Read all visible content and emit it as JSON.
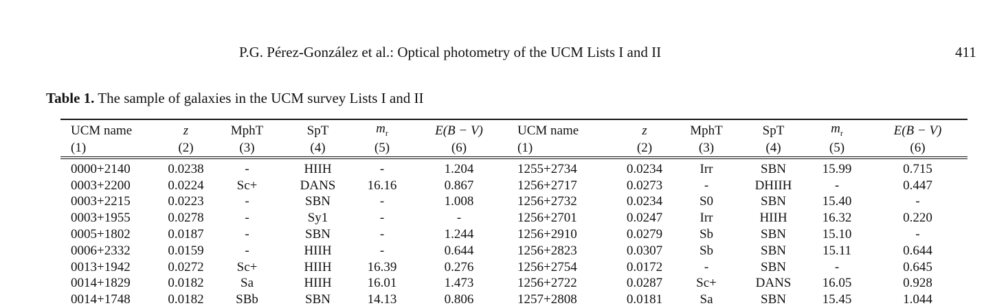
{
  "header": {
    "running_title": "P.G. Pérez-González et al.: Optical photometry of the UCM Lists I and II",
    "page_number": "411"
  },
  "caption": {
    "label": "Table 1.",
    "text": "The sample of galaxies in the UCM survey Lists I and II"
  },
  "table": {
    "columns": [
      "UCM name",
      "z",
      "MphT",
      "SpT",
      "mr",
      "E(B − V)",
      "UCM name",
      "z",
      "MphT",
      "SpT",
      "mr",
      "E(B − V)"
    ],
    "column_numbers": [
      "(1)",
      "(2)",
      "(3)",
      "(4)",
      "(5)",
      "(6)",
      "(1)",
      "(2)",
      "(3)",
      "(4)",
      "(5)",
      "(6)"
    ],
    "rows": [
      [
        "0000+2140",
        "0.0238",
        "-",
        "HIIH",
        "-",
        "1.204",
        "1255+2734",
        "0.0234",
        "Irr",
        "SBN",
        "15.99",
        "0.715"
      ],
      [
        "0003+2200",
        "0.0224",
        "Sc+",
        "DANS",
        "16.16",
        "0.867",
        "1256+2717",
        "0.0273",
        "-",
        "DHIIH",
        "-",
        "0.447"
      ],
      [
        "0003+2215",
        "0.0223",
        "-",
        "SBN",
        "-",
        "1.008",
        "1256+2732",
        "0.0234",
        "S0",
        "SBN",
        "15.40",
        "-"
      ],
      [
        "0003+1955",
        "0.0278",
        "-",
        "Sy1",
        "-",
        "-",
        "1256+2701",
        "0.0247",
        "Irr",
        "HIIH",
        "16.32",
        "0.220"
      ],
      [
        "0005+1802",
        "0.0187",
        "-",
        "SBN",
        "-",
        "1.244",
        "1256+2910",
        "0.0279",
        "Sb",
        "SBN",
        "15.10",
        "-"
      ],
      [
        "0006+2332",
        "0.0159",
        "-",
        "HIIH",
        "-",
        "0.644",
        "1256+2823",
        "0.0307",
        "Sb",
        "SBN",
        "15.11",
        "0.644"
      ],
      [
        "0013+1942",
        "0.0272",
        "Sc+",
        "HIIH",
        "16.39",
        "0.276",
        "1256+2754",
        "0.0172",
        "-",
        "SBN",
        "-",
        "0.645"
      ],
      [
        "0014+1829",
        "0.0182",
        "Sa",
        "HIIH",
        "16.01",
        "1.473",
        "1256+2722",
        "0.0287",
        "Sc+",
        "DANS",
        "16.05",
        "0.928"
      ],
      [
        "0014+1748",
        "0.0182",
        "SBb",
        "SBN",
        "14.13",
        "0.806",
        "1257+2808",
        "0.0181",
        "Sa",
        "SBN",
        "15.45",
        "1.044"
      ]
    ]
  }
}
